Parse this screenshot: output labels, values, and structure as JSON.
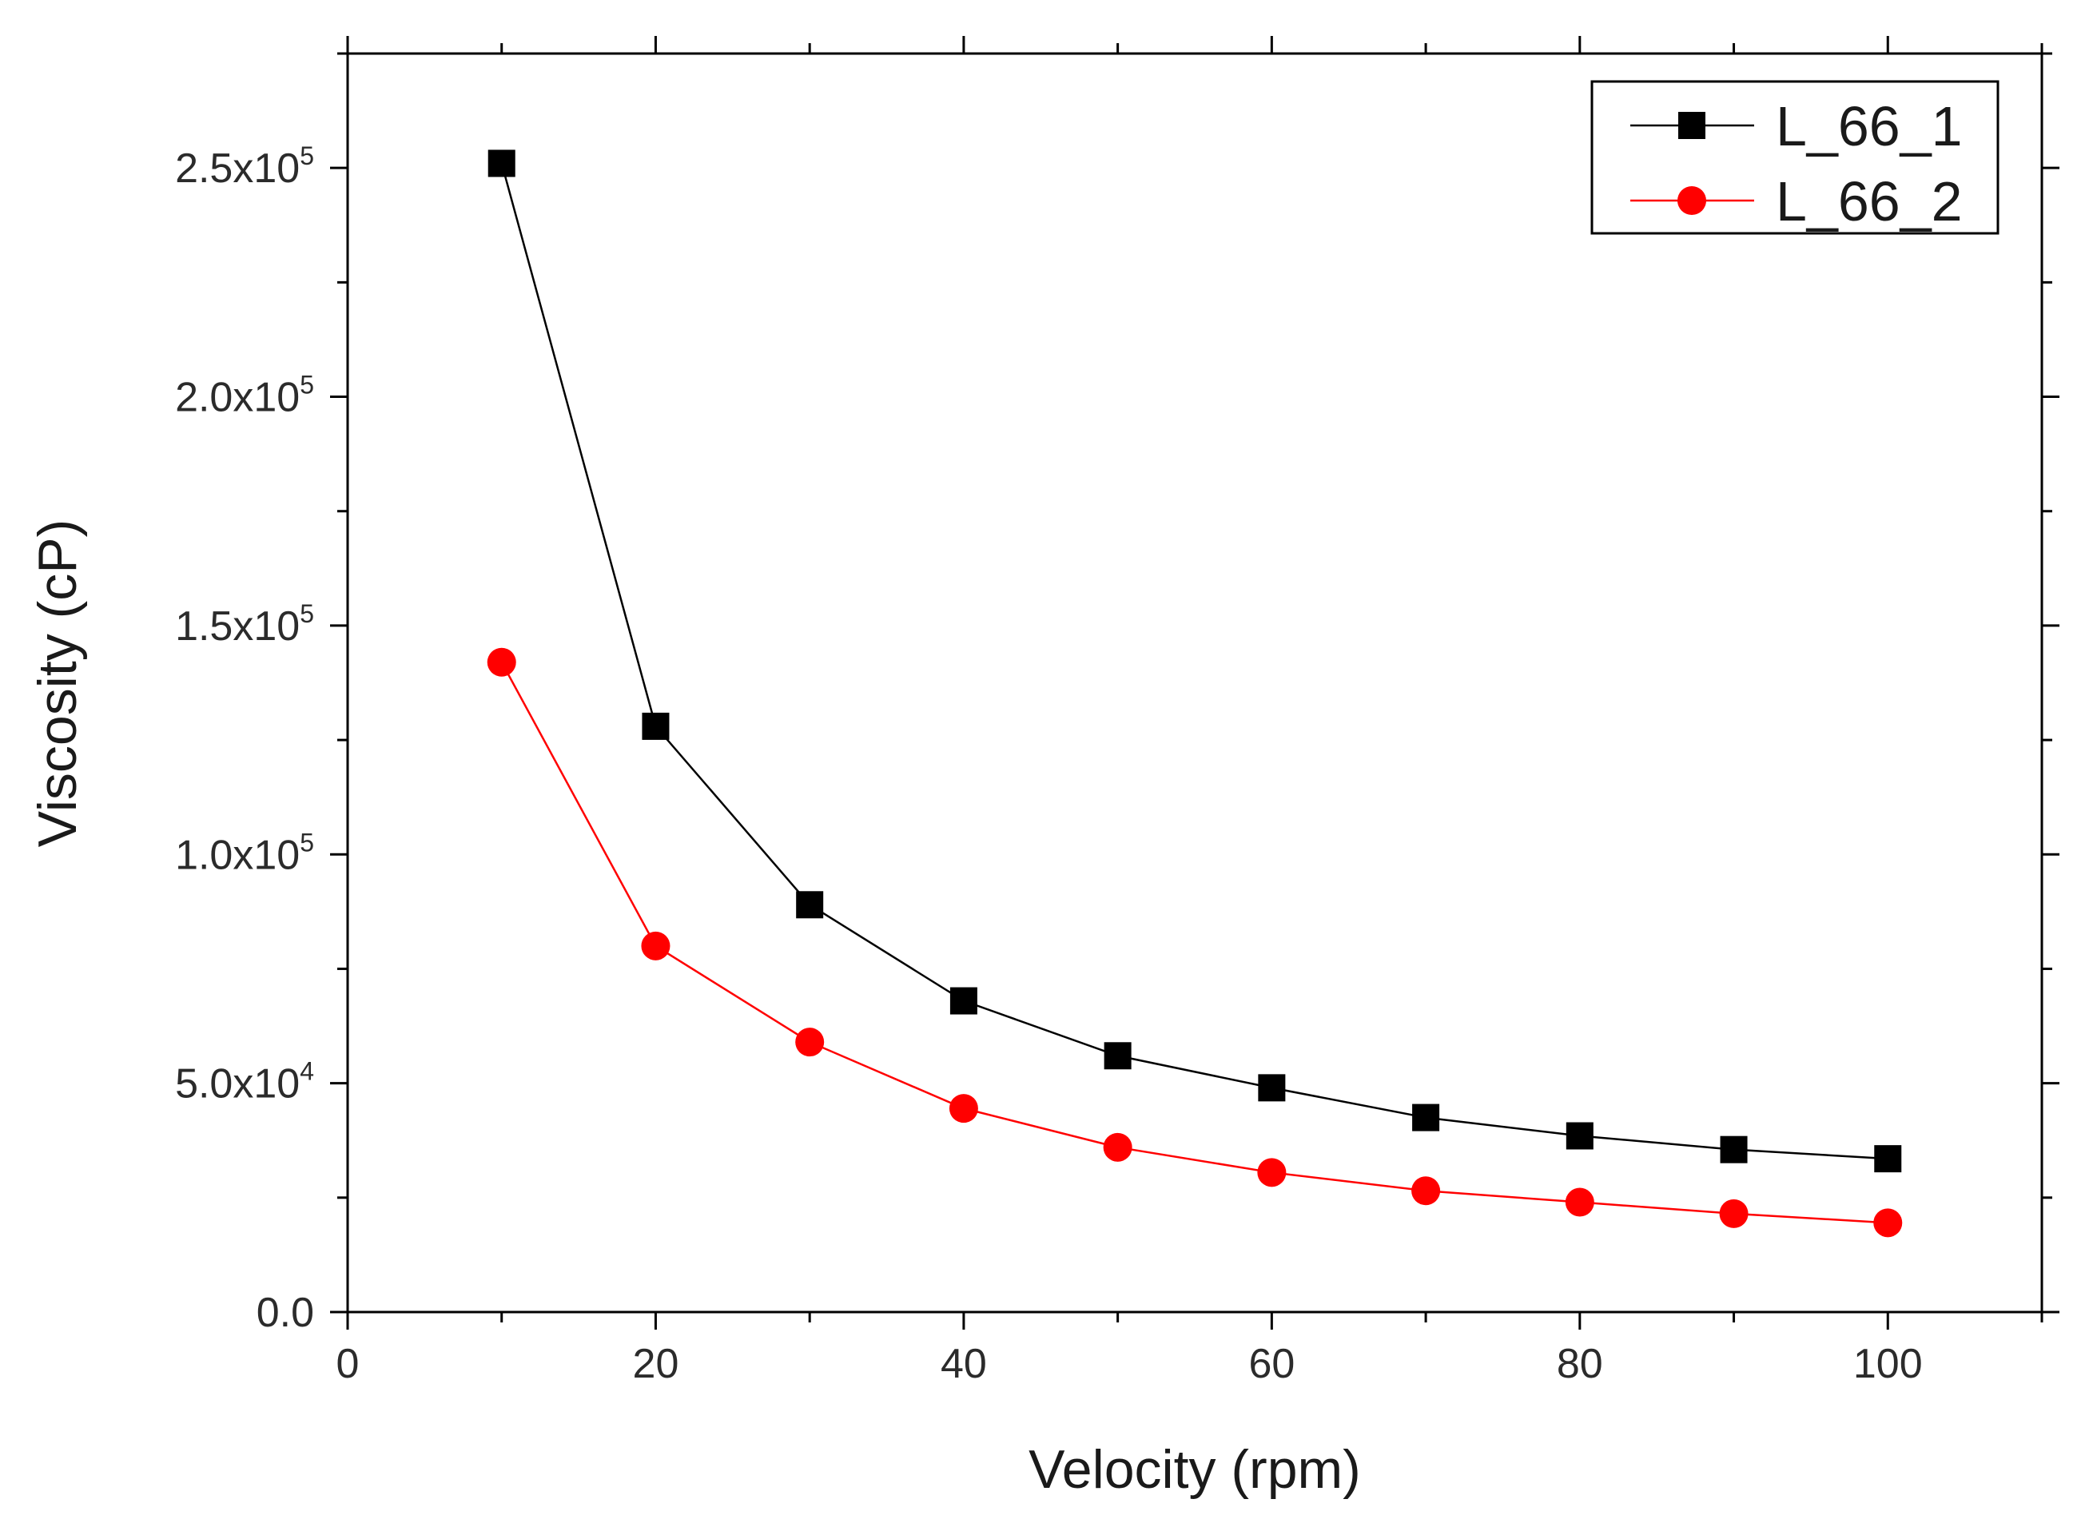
{
  "chart_data": {
    "type": "line",
    "title": "",
    "xlabel": "Velocity (rpm)",
    "ylabel": "Viscosity (cP)",
    "xlim": [
      0,
      110
    ],
    "ylim": [
      0,
      275000
    ],
    "xticks": [
      0,
      20,
      40,
      60,
      80,
      100
    ],
    "xtick_labels": [
      "0",
      "20",
      "40",
      "60",
      "80",
      "100"
    ],
    "yticks": [
      0,
      50000,
      100000,
      150000,
      200000,
      250000
    ],
    "ytick_labels": [
      {
        "mantissa": "0.0",
        "exponent": ""
      },
      {
        "mantissa": "5.0x10",
        "exponent": "4"
      },
      {
        "mantissa": "1.0x10",
        "exponent": "5"
      },
      {
        "mantissa": "1.5x10",
        "exponent": "5"
      },
      {
        "mantissa": "2.0x10",
        "exponent": "5"
      },
      {
        "mantissa": "2.5x10",
        "exponent": "5"
      }
    ],
    "x": [
      10,
      20,
      30,
      40,
      50,
      60,
      70,
      80,
      90,
      100
    ],
    "series": [
      {
        "name": "L_66_1",
        "color": "#000000",
        "marker": "square",
        "values": [
          251000,
          128000,
          89000,
          68000,
          56000,
          49000,
          42500,
          38500,
          35500,
          33500
        ]
      },
      {
        "name": "L_66_2",
        "color": "#ff0000",
        "marker": "circle",
        "values": [
          142000,
          80000,
          59000,
          44500,
          36000,
          30500,
          26500,
          24000,
          21500,
          19500
        ]
      }
    ],
    "legend": "top-right",
    "grid": false
  }
}
